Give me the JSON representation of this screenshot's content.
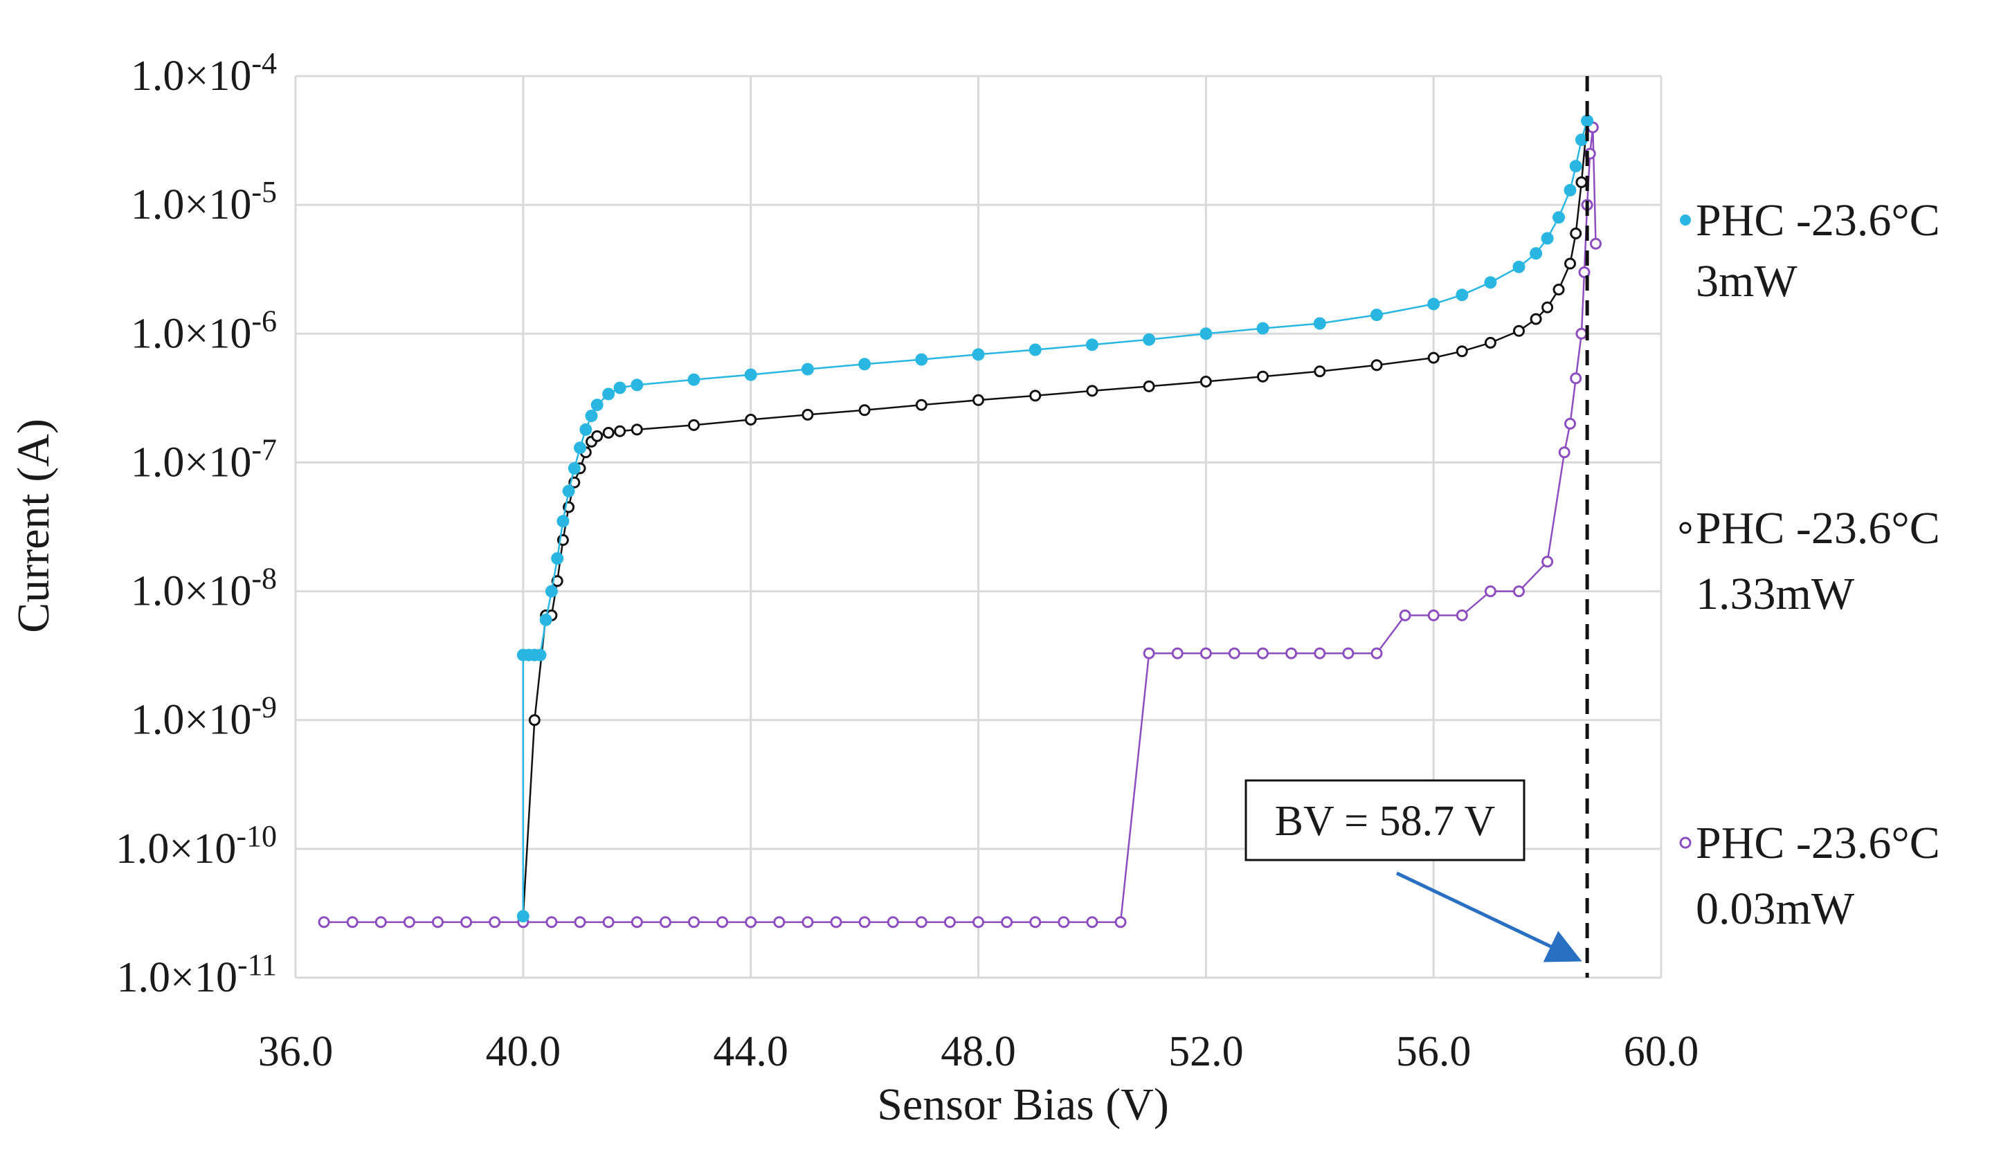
{
  "chart_data": {
    "type": "scatter",
    "title": "",
    "xlabel": "Sensor Bias (V)",
    "ylabel": "Current (A)",
    "xlim": [
      36.0,
      60.0
    ],
    "ylim": [
      1e-11,
      0.0001
    ],
    "yscale": "log",
    "grid": true,
    "x_ticks": [
      {
        "value": 36,
        "label": "36.0"
      },
      {
        "value": 40,
        "label": "40.0"
      },
      {
        "value": 44,
        "label": "44.0"
      },
      {
        "value": 48,
        "label": "48.0"
      },
      {
        "value": 52,
        "label": "52.0"
      },
      {
        "value": 56,
        "label": "56.0"
      },
      {
        "value": 60,
        "label": "60.0"
      }
    ],
    "y_ticks": [
      {
        "exp": -4,
        "mantissa": "1.0×10",
        "sup": "-4"
      },
      {
        "exp": -5,
        "mantissa": "1.0×10",
        "sup": "-5"
      },
      {
        "exp": -6,
        "mantissa": "1.0×10",
        "sup": "-6"
      },
      {
        "exp": -7,
        "mantissa": "1.0×10",
        "sup": "-7"
      },
      {
        "exp": -8,
        "mantissa": "1.0×10",
        "sup": "-8"
      },
      {
        "exp": -9,
        "mantissa": "1.0×10",
        "sup": "-9"
      },
      {
        "exp": -10,
        "mantissa": "1.0×10",
        "sup": "-10"
      },
      {
        "exp": -11,
        "mantissa": "1.0×10",
        "sup": "-11"
      }
    ],
    "series": [
      {
        "name": "PHC -23.6°C 3mW",
        "legend_line1": "PHC -23.6°C",
        "legend_line2": "3mW",
        "color": "#29b6e0",
        "marker": "filled",
        "x": [
          40.0,
          40.0,
          40.1,
          40.2,
          40.3,
          40.4,
          40.5,
          40.6,
          40.7,
          40.8,
          40.9,
          41.0,
          41.1,
          41.2,
          41.3,
          41.5,
          41.7,
          42.0,
          43.0,
          44.0,
          45.0,
          46.0,
          47.0,
          48.0,
          49.0,
          50.0,
          51.0,
          52.0,
          53.0,
          54.0,
          55.0,
          56.0,
          56.5,
          57.0,
          57.5,
          57.8,
          58.0,
          58.2,
          58.4,
          58.5,
          58.6,
          58.7
        ],
        "y": [
          3e-11,
          3.2e-09,
          3.2e-09,
          3.2e-09,
          3.2e-09,
          6e-09,
          1e-08,
          1.8e-08,
          3.5e-08,
          6e-08,
          9e-08,
          1.3e-07,
          1.8e-07,
          2.3e-07,
          2.8e-07,
          3.4e-07,
          3.8e-07,
          4e-07,
          4.4e-07,
          4.8e-07,
          5.3e-07,
          5.8e-07,
          6.3e-07,
          6.9e-07,
          7.5e-07,
          8.2e-07,
          9e-07,
          1e-06,
          1.1e-06,
          1.2e-06,
          1.4e-06,
          1.7e-06,
          2e-06,
          2.5e-06,
          3.3e-06,
          4.2e-06,
          5.5e-06,
          8e-06,
          1.3e-05,
          2e-05,
          3.2e-05,
          4.5e-05
        ]
      },
      {
        "name": "PHC -23.6°C 1.33mW",
        "legend_line1": "PHC -23.6°C",
        "legend_line2": "1.33mW",
        "color": "#111111",
        "marker": "hollow",
        "x": [
          40.0,
          40.2,
          40.4,
          40.5,
          40.6,
          40.7,
          40.8,
          40.9,
          41.0,
          41.1,
          41.2,
          41.3,
          41.5,
          41.7,
          42.0,
          43.0,
          44.0,
          45.0,
          46.0,
          47.0,
          48.0,
          49.0,
          50.0,
          51.0,
          52.0,
          53.0,
          54.0,
          55.0,
          56.0,
          56.5,
          57.0,
          57.5,
          57.8,
          58.0,
          58.2,
          58.4,
          58.5,
          58.6,
          58.7
        ],
        "y": [
          3e-11,
          1e-09,
          6.5e-09,
          6.5e-09,
          1.2e-08,
          2.5e-08,
          4.5e-08,
          7e-08,
          9e-08,
          1.2e-07,
          1.45e-07,
          1.6e-07,
          1.7e-07,
          1.75e-07,
          1.8e-07,
          1.95e-07,
          2.15e-07,
          2.35e-07,
          2.55e-07,
          2.8e-07,
          3.05e-07,
          3.3e-07,
          3.6e-07,
          3.9e-07,
          4.25e-07,
          4.65e-07,
          5.1e-07,
          5.7e-07,
          6.5e-07,
          7.3e-07,
          8.5e-07,
          1.05e-06,
          1.3e-06,
          1.6e-06,
          2.2e-06,
          3.5e-06,
          6e-06,
          1.5e-05,
          4.5e-05
        ]
      },
      {
        "name": "PHC -23.6°C 0.03mW",
        "legend_line1": "PHC -23.6°C",
        "legend_line2": "0.03mW",
        "color": "#8e4dbf",
        "marker": "hollow",
        "x": [
          36.5,
          37.0,
          37.5,
          38.0,
          38.5,
          39.0,
          39.5,
          40.0,
          40.5,
          41.0,
          41.5,
          42.0,
          42.5,
          43.0,
          43.5,
          44.0,
          44.5,
          45.0,
          45.5,
          46.0,
          46.5,
          47.0,
          47.5,
          48.0,
          48.5,
          49.0,
          49.5,
          50.0,
          50.5,
          51.0,
          51.5,
          52.0,
          52.5,
          53.0,
          53.5,
          54.0,
          54.5,
          55.0,
          55.5,
          56.0,
          56.5,
          57.0,
          57.5,
          58.0,
          58.3,
          58.4,
          58.5,
          58.6,
          58.65,
          58.7,
          58.75,
          58.8,
          58.85
        ],
        "y": [
          2.7e-11,
          2.7e-11,
          2.7e-11,
          2.7e-11,
          2.7e-11,
          2.7e-11,
          2.7e-11,
          2.7e-11,
          2.7e-11,
          2.7e-11,
          2.7e-11,
          2.7e-11,
          2.7e-11,
          2.7e-11,
          2.7e-11,
          2.7e-11,
          2.7e-11,
          2.7e-11,
          2.7e-11,
          2.7e-11,
          2.7e-11,
          2.7e-11,
          2.7e-11,
          2.7e-11,
          2.7e-11,
          2.7e-11,
          2.7e-11,
          2.7e-11,
          2.7e-11,
          3.3e-09,
          3.3e-09,
          3.3e-09,
          3.3e-09,
          3.3e-09,
          3.3e-09,
          3.3e-09,
          3.3e-09,
          3.3e-09,
          6.5e-09,
          6.5e-09,
          6.5e-09,
          1e-08,
          1e-08,
          1.7e-08,
          1.2e-07,
          2e-07,
          4.5e-07,
          1e-06,
          3e-06,
          1e-05,
          2.5e-05,
          4e-05,
          5e-06
        ]
      }
    ],
    "annotations": [
      {
        "text": "BV = 58.7 V",
        "x": 58.7,
        "line": "vertical-dashed",
        "arrow_color": "#2a70c2"
      }
    ],
    "legend_position": "right"
  }
}
